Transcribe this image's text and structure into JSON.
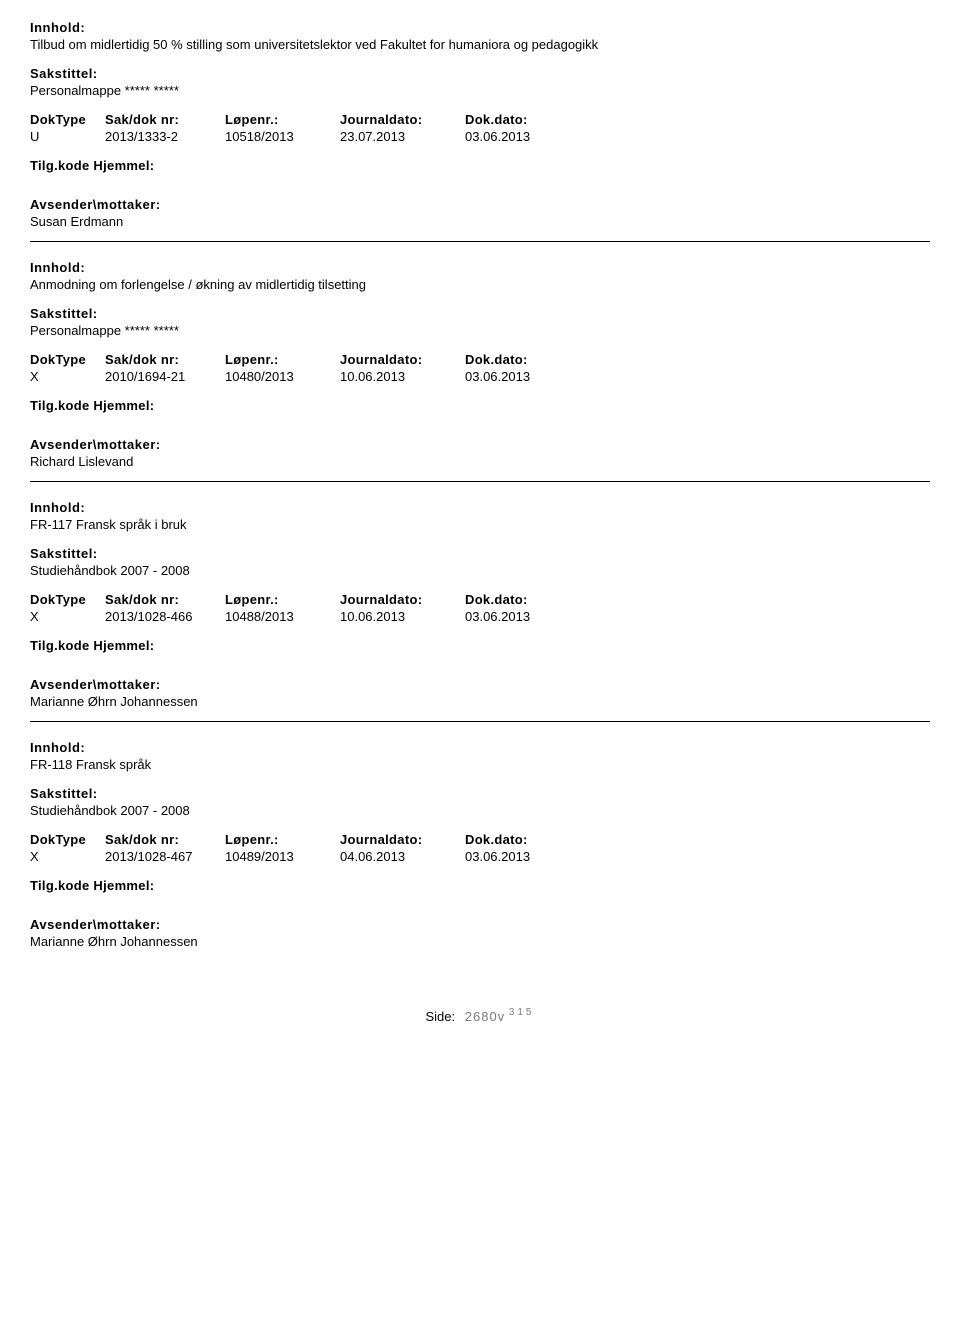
{
  "labels": {
    "innhold": "Innhold:",
    "sakstittel": "Sakstittel:",
    "doktype": "DokType",
    "sakdoknr": "Sak/dok nr:",
    "lopenr": "Løpenr.:",
    "journaldato": "Journaldato:",
    "dokdato": "Dok.dato:",
    "tilgkode": "Tilg.kode Hjemmel:",
    "avsender": "Avsender\\mottaker:",
    "side": "Side:"
  },
  "records": [
    {
      "innhold": "Tilbud om midlertidig 50 % stilling som universitetslektor ved Fakultet for humaniora og pedagogikk",
      "sakstittel": "Personalmappe ***** *****",
      "doktype": "U",
      "sakdoknr": "2013/1333-2",
      "lopenr": "10518/2013",
      "journaldato": "23.07.2013",
      "dokdato": "03.06.2013",
      "avsender": "Susan Erdmann"
    },
    {
      "innhold": "Anmodning om forlengelse / økning av midlertidig tilsetting",
      "sakstittel": "Personalmappe ***** *****",
      "doktype": "X",
      "sakdoknr": "2010/1694-21",
      "lopenr": "10480/2013",
      "journaldato": "10.06.2013",
      "dokdato": "03.06.2013",
      "avsender": "Richard Lislevand"
    },
    {
      "innhold": "FR-117 Fransk språk i bruk",
      "sakstittel": "Studiehåndbok 2007 - 2008",
      "doktype": "X",
      "sakdoknr": "2013/1028-466",
      "lopenr": "10488/2013",
      "journaldato": "10.06.2013",
      "dokdato": "03.06.2013",
      "avsender": "Marianne Øhrn Johannessen"
    },
    {
      "innhold": "FR-118 Fransk språk",
      "sakstittel": "Studiehåndbok 2007 - 2008",
      "doktype": "X",
      "sakdoknr": "2013/1028-467",
      "lopenr": "10489/2013",
      "journaldato": "04.06.2013",
      "dokdato": "03.06.2013",
      "avsender": "Marianne Øhrn Johannessen"
    }
  ],
  "footer": {
    "pagenum": "2680v",
    "extra": "315"
  }
}
